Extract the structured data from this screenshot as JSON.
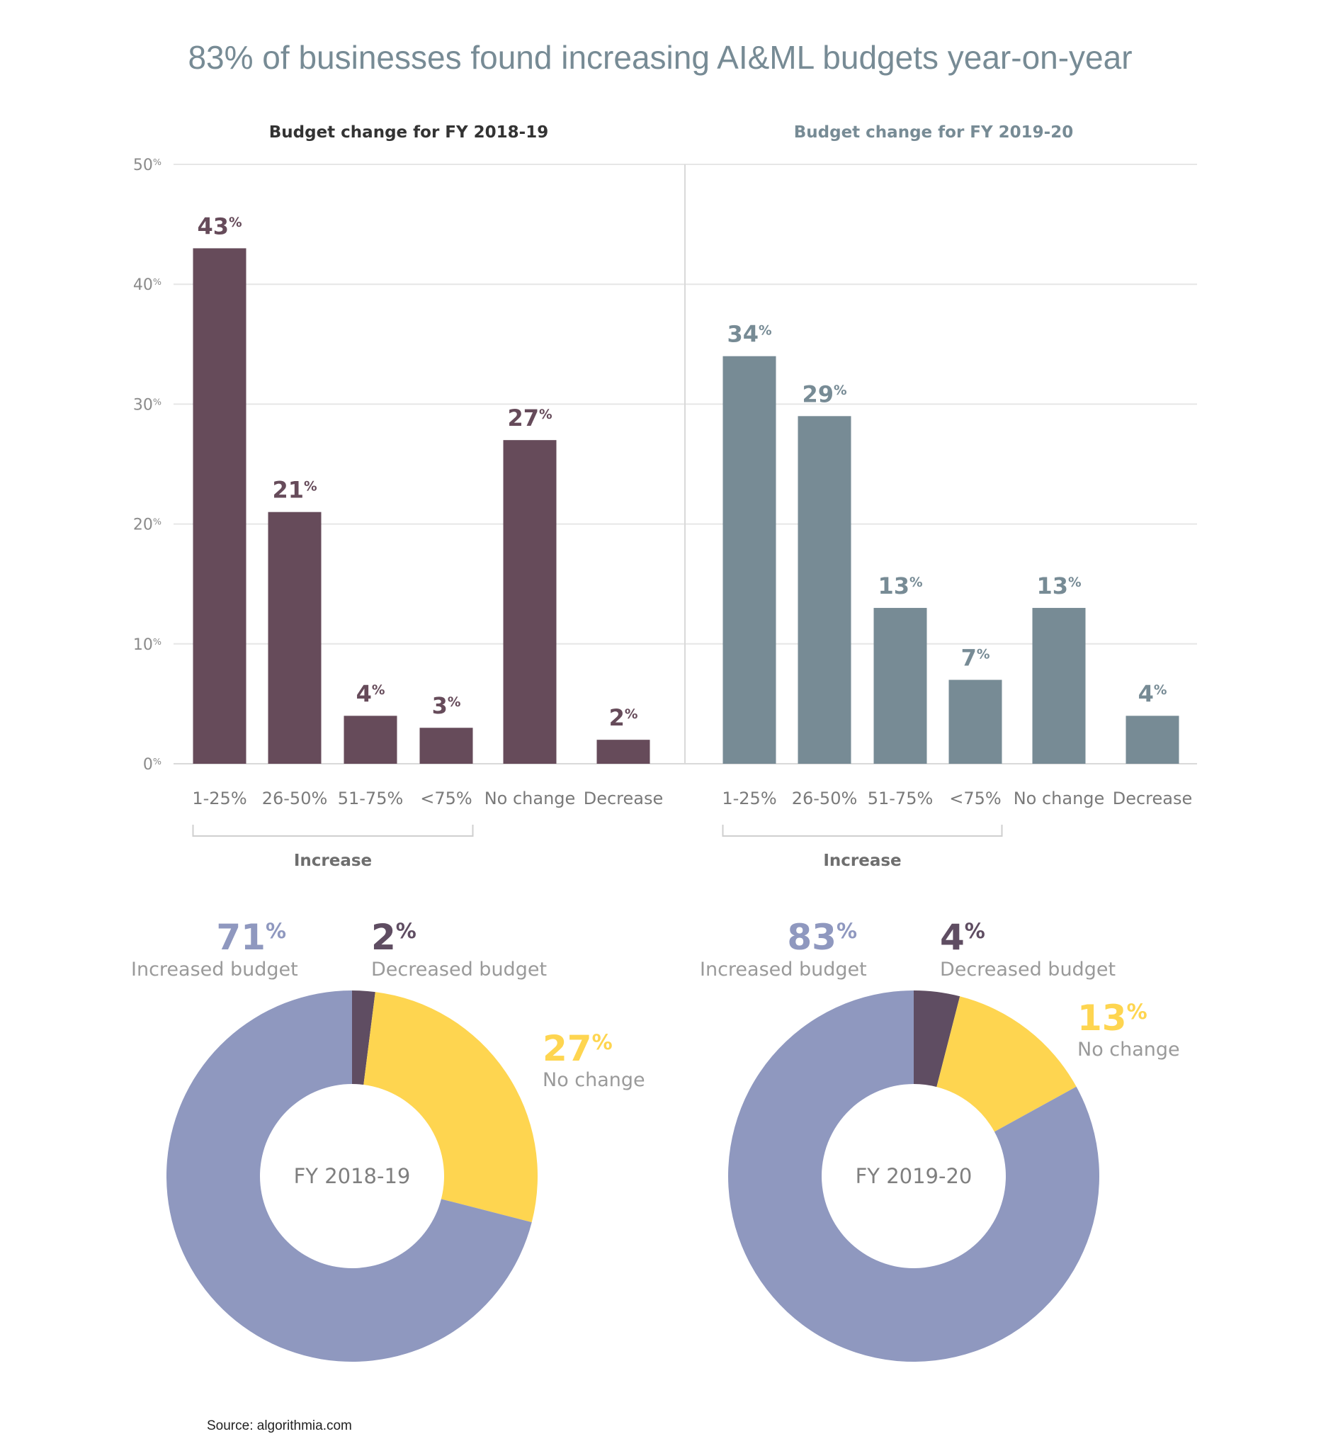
{
  "title": "83% of businesses found increasing AI&ML budgets year-on-year",
  "source": "Source: algorithmia.com",
  "colors": {
    "bar_2018": "#664b5a",
    "bar_2019": "#778b95",
    "increased": "#8f98bf",
    "decreased": "#5f4d62",
    "no_change": "#fed550",
    "title": "#778b95"
  },
  "chart_data": [
    {
      "type": "bar",
      "title": "Budget change for FY 2018-19",
      "categories": [
        "1-25%",
        "26-50%",
        "51-75%",
        "<75%",
        "No change",
        "Decrease"
      ],
      "values": [
        43,
        21,
        4,
        3,
        27,
        2
      ],
      "value_labels": [
        "43%",
        "21%",
        "4%",
        "3%",
        "27%",
        "2%"
      ],
      "group_label": "Increase",
      "ylim": [
        0,
        50
      ],
      "yticks": [
        "0%",
        "10%",
        "20%",
        "30%",
        "40%",
        "50%"
      ],
      "grid": true
    },
    {
      "type": "bar",
      "title": "Budget change for FY 2019-20",
      "categories": [
        "1-25%",
        "26-50%",
        "51-75%",
        "<75%",
        "No change",
        "Decrease"
      ],
      "values": [
        34,
        29,
        13,
        7,
        13,
        4
      ],
      "value_labels": [
        "34%",
        "29%",
        "13%",
        "7%",
        "13%",
        "4%"
      ],
      "group_label": "Increase",
      "ylim": [
        0,
        50
      ],
      "grid": true
    },
    {
      "type": "pie",
      "center_label": "FY 2018-19",
      "slices": [
        {
          "label": "Decreased budget",
          "value": 2,
          "pct": "2%"
        },
        {
          "label": "No change",
          "value": 27,
          "pct": "27%"
        },
        {
          "label": "Increased budget",
          "value": 71,
          "pct": "71%"
        }
      ]
    },
    {
      "type": "pie",
      "center_label": "FY 2019-20",
      "slices": [
        {
          "label": "Decreased budget",
          "value": 4,
          "pct": "4%"
        },
        {
          "label": "No change",
          "value": 13,
          "pct": "13%"
        },
        {
          "label": "Increased budget",
          "value": 83,
          "pct": "83%"
        }
      ]
    }
  ]
}
